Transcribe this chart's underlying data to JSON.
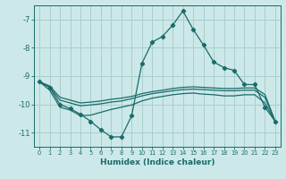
{
  "xlabel": "Humidex (Indice chaleur)",
  "background_color": "#cce8e8",
  "grid_color": "#aacece",
  "line_color": "#1a6b6b",
  "x_values": [
    0,
    1,
    2,
    3,
    4,
    5,
    6,
    7,
    8,
    9,
    10,
    11,
    12,
    13,
    14,
    15,
    16,
    17,
    18,
    19,
    20,
    21,
    22,
    23
  ],
  "line1_y": [
    -9.2,
    -9.4,
    -10.0,
    -10.15,
    -10.35,
    -10.6,
    -10.9,
    -11.15,
    -11.15,
    -10.4,
    -8.55,
    -7.8,
    -7.6,
    -7.2,
    -6.7,
    -7.35,
    -7.9,
    -8.5,
    -8.7,
    -8.8,
    -9.3,
    -9.3,
    -10.1,
    -10.6
  ],
  "line2_y": [
    -9.2,
    -9.35,
    -9.75,
    -9.85,
    -9.95,
    -9.92,
    -9.88,
    -9.82,
    -9.78,
    -9.72,
    -9.62,
    -9.55,
    -9.5,
    -9.44,
    -9.4,
    -9.38,
    -9.4,
    -9.42,
    -9.44,
    -9.44,
    -9.42,
    -9.42,
    -9.65,
    -10.6
  ],
  "line3_y": [
    -9.2,
    -9.4,
    -9.85,
    -9.95,
    -10.05,
    -10.02,
    -9.98,
    -9.92,
    -9.88,
    -9.8,
    -9.7,
    -9.62,
    -9.57,
    -9.52,
    -9.48,
    -9.46,
    -9.48,
    -9.5,
    -9.52,
    -9.52,
    -9.5,
    -9.5,
    -9.75,
    -10.6
  ],
  "line4_y": [
    -9.2,
    -9.5,
    -10.1,
    -10.2,
    -10.4,
    -10.38,
    -10.28,
    -10.18,
    -10.1,
    -10.02,
    -9.88,
    -9.78,
    -9.72,
    -9.66,
    -9.62,
    -9.6,
    -9.64,
    -9.66,
    -9.7,
    -9.7,
    -9.66,
    -9.66,
    -9.95,
    -10.6
  ],
  "ylim": [
    -11.5,
    -6.5
  ],
  "xlim": [
    -0.5,
    23.5
  ],
  "yticks": [
    -11,
    -10,
    -9,
    -8,
    -7
  ],
  "xticks": [
    0,
    1,
    2,
    3,
    4,
    5,
    6,
    7,
    8,
    9,
    10,
    11,
    12,
    13,
    14,
    15,
    16,
    17,
    18,
    19,
    20,
    21,
    22,
    23
  ]
}
